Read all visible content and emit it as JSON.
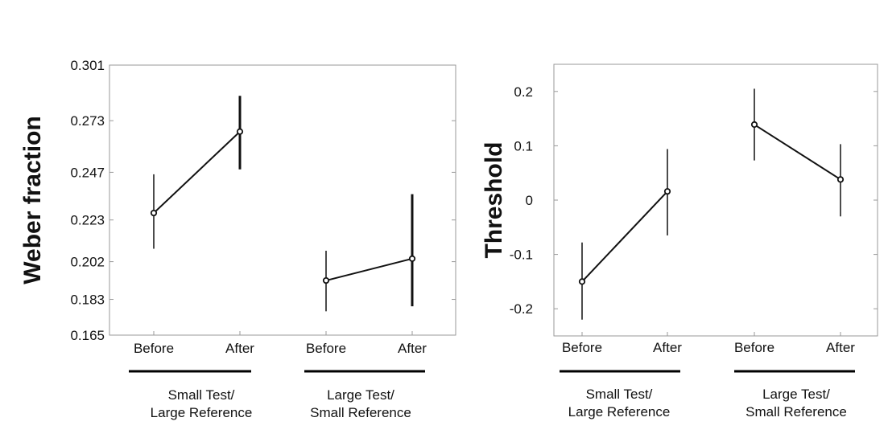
{
  "chart_data": [
    {
      "type": "line",
      "ylabel": "Weber fraction",
      "xlabel": "",
      "ylim": [
        0.165,
        0.301
      ],
      "yticks": [
        "0.301",
        "0.273",
        "0.247",
        "0.223",
        "0.202",
        "0.183",
        "0.165"
      ],
      "categories": [
        "Before",
        "After",
        "Before",
        "After"
      ],
      "groups": [
        {
          "label_lines": [
            "Small Test/",
            "Large Reference"
          ]
        },
        {
          "label_lines": [
            "Large Test/",
            "Small Reference"
          ]
        }
      ],
      "series": [
        {
          "points": [
            {
              "y": 0.2265,
              "lo": 0.2085,
              "hi": 0.246
            },
            {
              "y": 0.2675,
              "lo": 0.2485,
              "hi": 0.2855
            }
          ]
        },
        {
          "points": [
            {
              "y": 0.1925,
              "lo": 0.177,
              "hi": 0.2075
            },
            {
              "y": 0.2035,
              "lo": 0.1795,
              "hi": 0.236
            }
          ]
        }
      ]
    },
    {
      "type": "line",
      "ylabel": "Threshold",
      "xlabel": "",
      "ylim": [
        -0.25,
        0.25
      ],
      "yticks": [
        "0.2",
        "0.1",
        "0",
        "-0.1",
        "-0.2"
      ],
      "categories": [
        "Before",
        "After",
        "Before",
        "After"
      ],
      "groups": [
        {
          "label_lines": [
            "Small Test/",
            "Large Reference"
          ]
        },
        {
          "label_lines": [
            "Large Test/",
            "Small Reference"
          ]
        }
      ],
      "series": [
        {
          "points": [
            {
              "y": -0.15,
              "lo": -0.22,
              "hi": -0.078
            },
            {
              "y": 0.016,
              "lo": -0.065,
              "hi": 0.094
            }
          ]
        },
        {
          "points": [
            {
              "y": 0.139,
              "lo": 0.073,
              "hi": 0.205
            },
            {
              "y": 0.038,
              "lo": -0.03,
              "hi": 0.103
            }
          ]
        }
      ]
    }
  ]
}
